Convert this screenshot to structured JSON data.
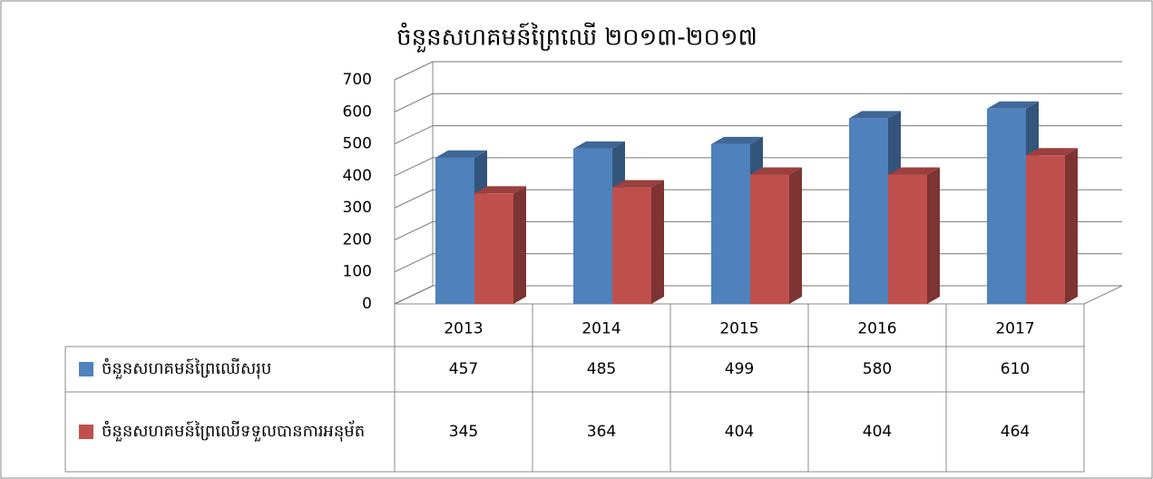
{
  "chart_data": {
    "type": "bar3d",
    "title": "ចំនួនសហគមន៍ព្រៃឈើ ២០១៣-២០១៧",
    "categories": [
      "2013",
      "2014",
      "2015",
      "2016",
      "2017"
    ],
    "series": [
      {
        "name": "ចំនួនសហគមន៍ព្រៃឈើសរុប",
        "color": "#4f81bd",
        "values": [
          457,
          485,
          499,
          580,
          610
        ]
      },
      {
        "name": "ចំនួនសហគមន៍ព្រៃឈើទទួលបានការអនុម័ត",
        "color": "#c0504d",
        "values": [
          345,
          364,
          404,
          404,
          464
        ]
      }
    ],
    "ylim": [
      0,
      700
    ],
    "yticks": [
      0,
      100,
      200,
      300,
      400,
      500,
      600,
      700
    ],
    "grid": true,
    "data_table": true
  }
}
